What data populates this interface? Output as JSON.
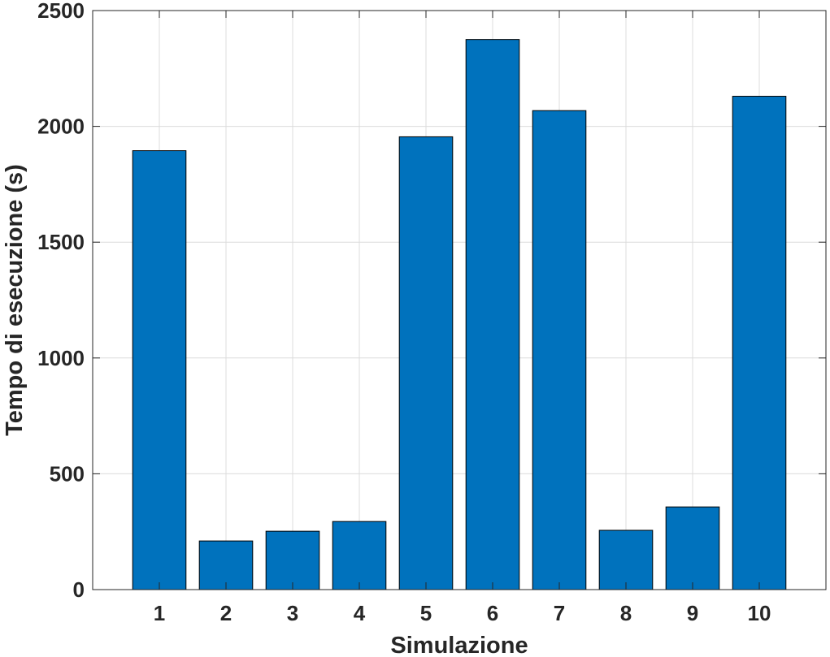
{
  "chart_data": {
    "type": "bar",
    "title": "",
    "xlabel": "Simulazione",
    "ylabel": "Tempo di esecuzione (s)",
    "categories": [
      "1",
      "2",
      "3",
      "4",
      "5",
      "6",
      "7",
      "8",
      "9",
      "10"
    ],
    "values": [
      1895,
      210,
      252,
      294,
      1955,
      2375,
      2068,
      256,
      357,
      2130
    ],
    "ylim": [
      0,
      2500
    ],
    "xlim": [
      0,
      11
    ],
    "yticks": [
      0,
      500,
      1000,
      1500,
      2000,
      2500
    ],
    "grid": true,
    "bar_color": "#0072bd",
    "bar_edge_color": "#000000",
    "gridline_color": "#dcdcdc",
    "axis_color": "#262626"
  }
}
